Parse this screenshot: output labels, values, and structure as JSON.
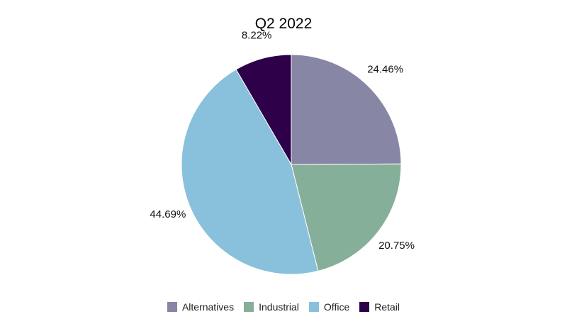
{
  "chart_data": {
    "type": "pie",
    "title": "Q2 2022",
    "categories": [
      "Alternatives",
      "Industrial",
      "Office",
      "Retail"
    ],
    "values": [
      24.46,
      20.75,
      44.69,
      8.22
    ],
    "labels": [
      "24.46%",
      "20.75%",
      "44.69%",
      "8.22%"
    ],
    "colors": [
      "#8886a5",
      "#85af98",
      "#89c0dc",
      "#2d0049"
    ],
    "legend_position": "bottom",
    "start_angle": "top (12 o'clock)",
    "direction": "clockwise"
  }
}
